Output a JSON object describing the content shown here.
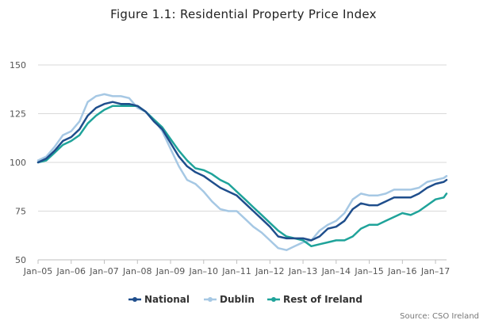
{
  "chart_data": {
    "type": "line",
    "title": "Figure 1.1: Residential Property Price Index",
    "xlabel": "",
    "ylabel": "",
    "x_tick_labels": [
      "Jan–05",
      "Jan–06",
      "Jan–07",
      "Jan–08",
      "Jan–09",
      "Jan–10",
      "Jan–11",
      "Jan–12",
      "Jan–13",
      "Jan–14",
      "Jan–15",
      "Jan–16",
      "Jan–17"
    ],
    "y_ticks": [
      50,
      75,
      100,
      125,
      150
    ],
    "ylim": [
      50,
      150
    ],
    "x_start": "2005-01",
    "x_end": "2017-05",
    "grid": "horizontal",
    "legend_position": "bottom",
    "series": [
      {
        "name": "National",
        "color": "#1f4e8c",
        "points": [
          [
            "2005-01",
            100
          ],
          [
            "2005-04",
            102
          ],
          [
            "2005-07",
            106
          ],
          [
            "2005-10",
            111
          ],
          [
            "2006-01",
            113
          ],
          [
            "2006-04",
            117
          ],
          [
            "2006-07",
            124
          ],
          [
            "2006-10",
            128
          ],
          [
            "2007-01",
            130
          ],
          [
            "2007-04",
            131
          ],
          [
            "2007-07",
            130
          ],
          [
            "2007-10",
            130
          ],
          [
            "2008-01",
            129
          ],
          [
            "2008-04",
            126
          ],
          [
            "2008-07",
            121
          ],
          [
            "2008-10",
            117
          ],
          [
            "2009-01",
            110
          ],
          [
            "2009-04",
            103
          ],
          [
            "2009-07",
            98
          ],
          [
            "2009-10",
            95
          ],
          [
            "2010-01",
            93
          ],
          [
            "2010-04",
            90
          ],
          [
            "2010-07",
            87
          ],
          [
            "2010-10",
            85
          ],
          [
            "2011-01",
            83
          ],
          [
            "2011-04",
            79
          ],
          [
            "2011-07",
            75
          ],
          [
            "2011-10",
            71
          ],
          [
            "2012-01",
            67
          ],
          [
            "2012-04",
            62
          ],
          [
            "2012-07",
            61
          ],
          [
            "2012-10",
            61
          ],
          [
            "2013-01",
            61
          ],
          [
            "2013-04",
            60
          ],
          [
            "2013-07",
            62
          ],
          [
            "2013-10",
            66
          ],
          [
            "2014-01",
            67
          ],
          [
            "2014-04",
            70
          ],
          [
            "2014-07",
            76
          ],
          [
            "2014-10",
            79
          ],
          [
            "2015-01",
            78
          ],
          [
            "2015-04",
            78
          ],
          [
            "2015-07",
            80
          ],
          [
            "2015-10",
            82
          ],
          [
            "2016-01",
            82
          ],
          [
            "2016-04",
            82
          ],
          [
            "2016-07",
            84
          ],
          [
            "2016-10",
            87
          ],
          [
            "2017-01",
            89
          ],
          [
            "2017-04",
            90
          ],
          [
            "2017-05",
            91
          ]
        ]
      },
      {
        "name": "Dublin",
        "color": "#a6c8e4",
        "points": [
          [
            "2005-01",
            101
          ],
          [
            "2005-04",
            103
          ],
          [
            "2005-07",
            108
          ],
          [
            "2005-10",
            114
          ],
          [
            "2006-01",
            116
          ],
          [
            "2006-04",
            121
          ],
          [
            "2006-07",
            131
          ],
          [
            "2006-10",
            134
          ],
          [
            "2007-01",
            135
          ],
          [
            "2007-04",
            134
          ],
          [
            "2007-07",
            134
          ],
          [
            "2007-10",
            133
          ],
          [
            "2008-01",
            128
          ],
          [
            "2008-04",
            126
          ],
          [
            "2008-07",
            122
          ],
          [
            "2008-10",
            116
          ],
          [
            "2009-01",
            107
          ],
          [
            "2009-04",
            98
          ],
          [
            "2009-07",
            91
          ],
          [
            "2009-10",
            89
          ],
          [
            "2010-01",
            85
          ],
          [
            "2010-04",
            80
          ],
          [
            "2010-07",
            76
          ],
          [
            "2010-10",
            75
          ],
          [
            "2011-01",
            75
          ],
          [
            "2011-04",
            71
          ],
          [
            "2011-07",
            67
          ],
          [
            "2011-10",
            64
          ],
          [
            "2012-01",
            60
          ],
          [
            "2012-04",
            56
          ],
          [
            "2012-07",
            55
          ],
          [
            "2012-10",
            57
          ],
          [
            "2013-01",
            59
          ],
          [
            "2013-04",
            60
          ],
          [
            "2013-07",
            65
          ],
          [
            "2013-10",
            68
          ],
          [
            "2014-01",
            70
          ],
          [
            "2014-04",
            74
          ],
          [
            "2014-07",
            81
          ],
          [
            "2014-10",
            84
          ],
          [
            "2015-01",
            83
          ],
          [
            "2015-04",
            83
          ],
          [
            "2015-07",
            84
          ],
          [
            "2015-10",
            86
          ],
          [
            "2016-01",
            86
          ],
          [
            "2016-04",
            86
          ],
          [
            "2016-07",
            87
          ],
          [
            "2016-10",
            90
          ],
          [
            "2017-01",
            91
          ],
          [
            "2017-04",
            92
          ],
          [
            "2017-05",
            93
          ]
        ]
      },
      {
        "name": "Rest of Ireland",
        "color": "#1fa39a",
        "points": [
          [
            "2005-01",
            100
          ],
          [
            "2005-04",
            101
          ],
          [
            "2005-07",
            105
          ],
          [
            "2005-10",
            109
          ],
          [
            "2006-01",
            111
          ],
          [
            "2006-04",
            114
          ],
          [
            "2006-07",
            120
          ],
          [
            "2006-10",
            124
          ],
          [
            "2007-01",
            127
          ],
          [
            "2007-04",
            129
          ],
          [
            "2007-07",
            129
          ],
          [
            "2007-10",
            129
          ],
          [
            "2008-01",
            129
          ],
          [
            "2008-04",
            126
          ],
          [
            "2008-07",
            122
          ],
          [
            "2008-10",
            118
          ],
          [
            "2009-01",
            112
          ],
          [
            "2009-04",
            106
          ],
          [
            "2009-07",
            101
          ],
          [
            "2009-10",
            97
          ],
          [
            "2010-01",
            96
          ],
          [
            "2010-04",
            94
          ],
          [
            "2010-07",
            91
          ],
          [
            "2010-10",
            89
          ],
          [
            "2011-01",
            85
          ],
          [
            "2011-04",
            81
          ],
          [
            "2011-07",
            77
          ],
          [
            "2011-10",
            73
          ],
          [
            "2012-01",
            69
          ],
          [
            "2012-04",
            65
          ],
          [
            "2012-07",
            62
          ],
          [
            "2012-10",
            61
          ],
          [
            "2013-01",
            60
          ],
          [
            "2013-04",
            57
          ],
          [
            "2013-07",
            58
          ],
          [
            "2013-10",
            59
          ],
          [
            "2014-01",
            60
          ],
          [
            "2014-04",
            60
          ],
          [
            "2014-07",
            62
          ],
          [
            "2014-10",
            66
          ],
          [
            "2015-01",
            68
          ],
          [
            "2015-04",
            68
          ],
          [
            "2015-07",
            70
          ],
          [
            "2015-10",
            72
          ],
          [
            "2016-01",
            74
          ],
          [
            "2016-04",
            73
          ],
          [
            "2016-07",
            75
          ],
          [
            "2016-10",
            78
          ],
          [
            "2017-01",
            81
          ],
          [
            "2017-04",
            82
          ],
          [
            "2017-05",
            84
          ]
        ]
      }
    ],
    "source": "Source: CSO Ireland"
  }
}
